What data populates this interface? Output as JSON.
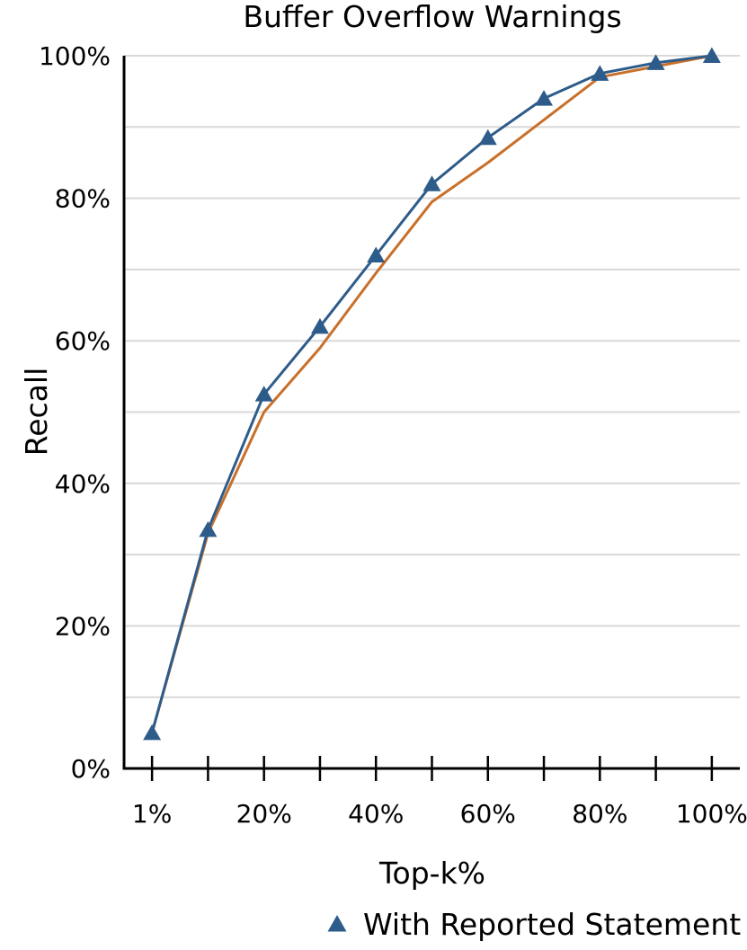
{
  "figure": {
    "background": "#ffffff",
    "text_color": "#000000",
    "gridline_color": "#d9d9d9",
    "spine_color": "#000000"
  },
  "chart_data": {
    "type": "line",
    "title": "Buffer Overflow Warnings",
    "x_axis": {
      "label": "Top-k%",
      "tick_positions": [
        1,
        10,
        20,
        30,
        40,
        50,
        60,
        70,
        80,
        90,
        100
      ],
      "tick_labels": [
        "1%",
        "",
        "20%",
        "",
        "40%",
        "",
        "60%",
        "",
        "80%",
        "",
        "100%"
      ]
    },
    "y_axis": {
      "label": "Recall",
      "range": [
        0,
        100
      ],
      "gridline_step": 10,
      "tick_labels": [
        {
          "value": 0,
          "label": "0%"
        },
        {
          "value": 20,
          "label": "20%"
        },
        {
          "value": 40,
          "label": "40%"
        },
        {
          "value": 60,
          "label": "60%"
        },
        {
          "value": 80,
          "label": "80%"
        },
        {
          "value": 100,
          "label": "100%"
        }
      ]
    },
    "x": [
      1,
      10,
      20,
      30,
      40,
      50,
      60,
      70,
      80,
      90,
      100
    ],
    "series": [
      {
        "name": "",
        "color": "#c8702a",
        "marker": "none",
        "line_width": 3,
        "values": [
          5,
          33,
          50,
          59,
          69.5,
          79.5,
          85,
          91,
          97,
          98.5,
          100
        ]
      },
      {
        "name": "With Reported Statement",
        "color": "#2e5c8a",
        "marker": "triangle-up",
        "line_width": 3,
        "values": [
          5,
          33.5,
          52.5,
          62,
          72,
          82,
          88.5,
          94,
          97.5,
          99,
          100
        ]
      }
    ],
    "legend": {
      "position": "bottom",
      "entries": [
        {
          "label": "With Reported Statement",
          "marker": "triangle-up",
          "color": "#2e5c8a"
        }
      ]
    }
  }
}
